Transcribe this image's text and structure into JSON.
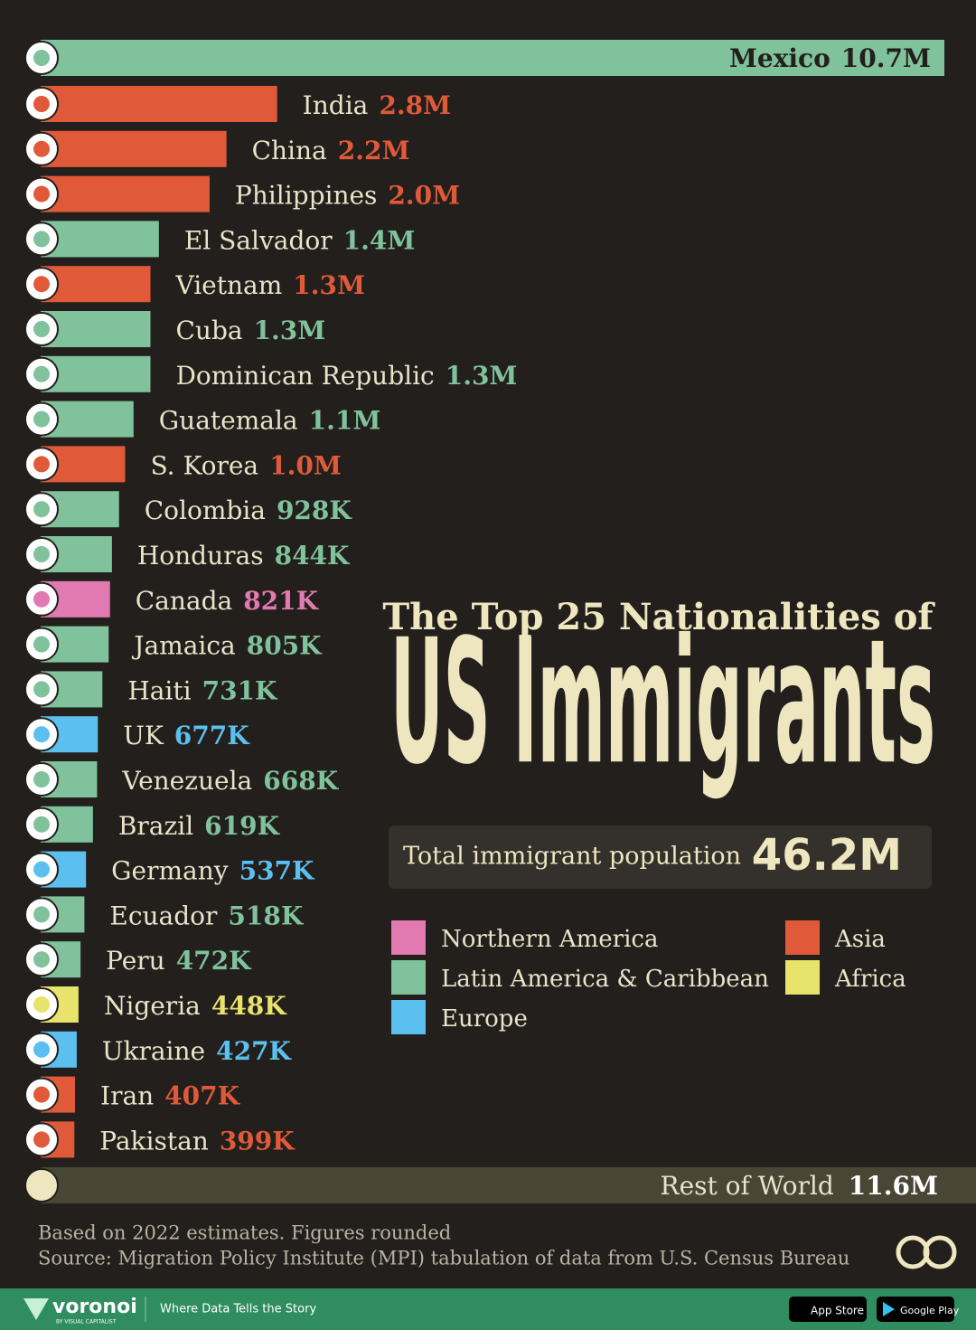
{
  "chart_data": {
    "type": "bar",
    "title": "The Top 25 Nationalities of",
    "subtitle": "US Immigrants",
    "categories": [
      "Mexico",
      "India",
      "China",
      "Philippines",
      "El Salvador",
      "Vietnam",
      "Cuba",
      "Dominican Republic",
      "Guatemala",
      "S. Korea",
      "Colombia",
      "Honduras",
      "Canada",
      "Jamaica",
      "Haiti",
      "UK",
      "Venezuela",
      "Brazil",
      "Germany",
      "Ecuador",
      "Peru",
      "Nigeria",
      "Ukraine",
      "Iran",
      "Pakistan"
    ],
    "values": [
      10700000,
      2800000,
      2200000,
      2000000,
      1400000,
      1300000,
      1300000,
      1300000,
      1100000,
      1000000,
      928000,
      844000,
      821000,
      805000,
      731000,
      677000,
      668000,
      619000,
      537000,
      518000,
      472000,
      448000,
      427000,
      407000,
      399000
    ],
    "value_labels": [
      "10.7M",
      "2.8M",
      "2.2M",
      "2.0M",
      "1.4M",
      "1.3M",
      "1.3M",
      "1.3M",
      "1.1M",
      "1.0M",
      "928K",
      "844K",
      "821K",
      "805K",
      "731K",
      "677K",
      "668K",
      "619K",
      "537K",
      "518K",
      "472K",
      "448K",
      "427K",
      "407K",
      "399K"
    ],
    "colors": [
      "#7fc29b",
      "#e05a3a",
      "#e05a3a",
      "#e05a3a",
      "#7fc29b",
      "#e05a3a",
      "#7fc29b",
      "#7fc29b",
      "#7fc29b",
      "#e05a3a",
      "#7fc29b",
      "#7fc29b",
      "#e07ab0",
      "#7fc29b",
      "#7fc29b",
      "#5bc0f0",
      "#7fc29b",
      "#7fc29b",
      "#5bc0f0",
      "#7fc29b",
      "#7fc29b",
      "#e8e36a",
      "#5bc0f0",
      "#e05a3a",
      "#e05a3a"
    ],
    "rest": {
      "name": "Rest of World",
      "value": 11600000,
      "value_label": "11.6M",
      "color": "#4a4636"
    },
    "total": {
      "label": "Total immigrant population",
      "value": 46200000,
      "value_label": "46.2M"
    },
    "legend": [
      {
        "name": "Northern America",
        "color": "#e07ab0"
      },
      {
        "name": "Latin America & Caribbean",
        "color": "#7fc29b"
      },
      {
        "name": "Europe",
        "color": "#5bc0f0"
      },
      {
        "name": "Asia",
        "color": "#e05a3a"
      },
      {
        "name": "Africa",
        "color": "#e8e36a"
      }
    ],
    "notes": [
      "Based on 2022 estimates. Figures rounded",
      "Source: Migration Policy Institute (MPI) tabulation of data from U.S. Census Bureau"
    ],
    "footer": {
      "brand": "voronoi",
      "brand_sub": "BY VISUAL CAPITALIST",
      "tagline": "Where Data Tells the Story",
      "app_store": "App Store",
      "google_play": "Google Play"
    }
  }
}
